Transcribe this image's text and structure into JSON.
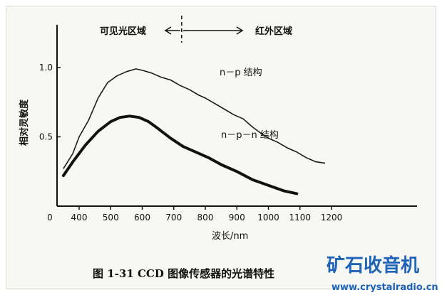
{
  "chart_data": {
    "type": "line",
    "title": "",
    "xlabel": "波长/nm",
    "ylabel": "相对灵敏度",
    "xlim": [
      300,
      1250
    ],
    "ylim": [
      0,
      1.1
    ],
    "x_ticks": [
      "0",
      "400",
      "500",
      "600",
      "700",
      "800",
      "900",
      "1000",
      "1100",
      "1200"
    ],
    "y_ticks": [
      "0.5",
      "1.0"
    ],
    "grid": false,
    "series": [
      {
        "name": "n－p 结构",
        "x": [
          350,
          380,
          400,
          430,
          460,
          490,
          520,
          550,
          580,
          600,
          630,
          660,
          690,
          720,
          750,
          780,
          800,
          830,
          860,
          890,
          920,
          950,
          980,
          1000,
          1030,
          1060,
          1090,
          1120,
          1150,
          1180
        ],
        "y": [
          0.27,
          0.38,
          0.5,
          0.62,
          0.78,
          0.89,
          0.94,
          0.97,
          0.99,
          0.98,
          0.96,
          0.93,
          0.91,
          0.87,
          0.84,
          0.8,
          0.78,
          0.74,
          0.7,
          0.66,
          0.63,
          0.57,
          0.52,
          0.49,
          0.46,
          0.42,
          0.39,
          0.35,
          0.32,
          0.31
        ]
      },
      {
        "name": "n－p－n 结构",
        "x": [
          350,
          380,
          420,
          460,
          500,
          530,
          560,
          590,
          620,
          650,
          690,
          730,
          770,
          810,
          850,
          900,
          950,
          1000,
          1050,
          1090
        ],
        "y": [
          0.22,
          0.32,
          0.44,
          0.54,
          0.61,
          0.64,
          0.65,
          0.64,
          0.61,
          0.56,
          0.49,
          0.43,
          0.39,
          0.35,
          0.3,
          0.25,
          0.19,
          0.15,
          0.11,
          0.09
        ]
      }
    ],
    "annotations": {
      "visible_region": "可见光区域",
      "infrared_region": "红外区域",
      "divider_x": 725
    }
  },
  "caption": "图 1-31    CCD 图像传感器的光谱特性",
  "watermark": {
    "title": "矿石收音机",
    "url": "www.crystalradio.cn"
  }
}
